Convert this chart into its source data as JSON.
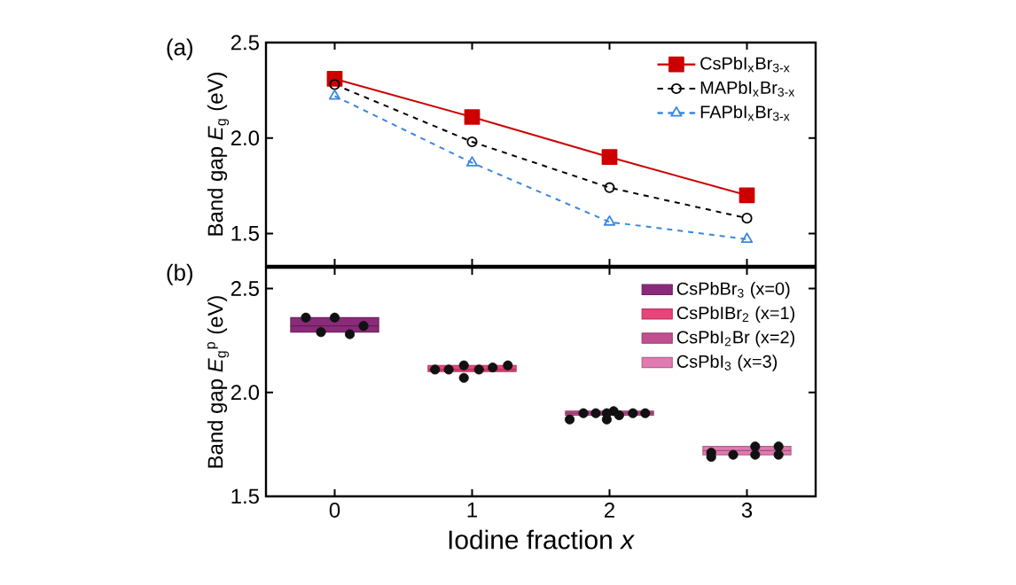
{
  "chart_data": [
    {
      "type": "line",
      "annotations": [
        "(a)"
      ],
      "ylabel": "Band gap *E*$_{g}$ (eV)",
      "x": [
        0,
        1,
        2,
        3
      ],
      "xlim": [
        -0.5,
        3.5
      ],
      "xticks": [
        0,
        1,
        2,
        3
      ],
      "ylim": [
        1.33,
        2.5
      ],
      "yticks": [
        {
          "value": 1.5,
          "label": "1.5"
        },
        {
          "value": 2,
          "label": "2.0"
        },
        {
          "value": 2.5,
          "label": "2.5"
        }
      ],
      "tick_labels": "y",
      "legend": "top right",
      "series": [
        {
          "name": "CsPbI$_{x}$Br$_{3-x}$",
          "color": "#cc0000",
          "values": [
            2.31,
            2.11,
            1.9,
            1.7
          ],
          "marker": "square",
          "line_style": "solid"
        },
        {
          "name": "MAPbI$_{x}$Br$_{3-x}$",
          "color": "#000000",
          "values": [
            2.28,
            1.98,
            1.74,
            1.58
          ],
          "marker": "circle",
          "line_style": "dashed"
        },
        {
          "name": "FAPbI$_{x}$Br$_{3-x}$",
          "color": "#3a86e0",
          "values": [
            2.22,
            1.87,
            1.56,
            1.47
          ],
          "marker": "triangle",
          "line_style": "dashed"
        }
      ]
    },
    {
      "type": "box",
      "annotations": [
        "(b)"
      ],
      "ylabel": "Band gap *E*$_{g}$$^{p}$ (eV)",
      "xlabel": "Iodine fraction *x*",
      "xlim": [
        -0.5,
        3.5
      ],
      "xticks": [
        0,
        1,
        2,
        3
      ],
      "ylim": [
        1.5,
        2.6
      ],
      "yticks": [
        {
          "value": 1.5,
          "label": "1.5"
        },
        {
          "value": 2,
          "label": "2.0"
        },
        {
          "value": 2.5,
          "label": "2.5"
        }
      ],
      "legend": "top right",
      "series": [
        {
          "name": "CsPbBr$_{3}$ (x=0)",
          "color": "#8b2a7a",
          "x": [
            0
          ],
          "boxes": [
            {
              "low": 2.29,
              "q1": 2.29,
              "median": 2.32,
              "q3": 2.36,
              "high": 2.36
            }
          ]
        },
        {
          "name": "CsPbIBr$_{2}$ (x=1)",
          "color": "#e8457a",
          "x": [
            1
          ],
          "boxes": [
            {
              "low": 2.1,
              "q1": 2.1,
              "median": 2.11,
              "q3": 2.13,
              "high": 2.13
            }
          ]
        },
        {
          "name": "CsPbI$_{2}$Br (x=2)",
          "color": "#c0508f",
          "x": [
            2
          ],
          "boxes": [
            {
              "low": 1.89,
              "q1": 1.89,
              "median": 1.9,
              "q3": 1.91,
              "high": 1.91
            }
          ]
        },
        {
          "name": "CsPbI$_{3}$ (x=3)",
          "color": "#e07ab0",
          "x": [
            3
          ],
          "boxes": [
            {
              "low": 1.7,
              "q1": 1.7,
              "median": 1.72,
              "q3": 1.74,
              "high": 1.74
            }
          ]
        },
        {
          "type": "scatter",
          "color": "#111111",
          "marker": "circle",
          "x": [
            -0.21,
            -0.1,
            0,
            0.11,
            0.21,
            0.73,
            0.83,
            0.94,
            0.94,
            1.05,
            1.15,
            1.26,
            1.71,
            1.81,
            1.9,
            1.98,
            1.98,
            2.03,
            2.07,
            2.17,
            2.26,
            2.74,
            2.74,
            2.9,
            3.06,
            3.06,
            3.23,
            3.23
          ],
          "values": [
            2.36,
            2.29,
            2.36,
            2.28,
            2.32,
            2.11,
            2.11,
            2.13,
            2.07,
            2.11,
            2.12,
            2.13,
            1.87,
            1.9,
            1.9,
            1.87,
            1.9,
            1.91,
            1.89,
            1.9,
            1.9,
            1.71,
            1.69,
            1.7,
            1.74,
            1.7,
            1.74,
            1.7
          ]
        }
      ]
    }
  ]
}
